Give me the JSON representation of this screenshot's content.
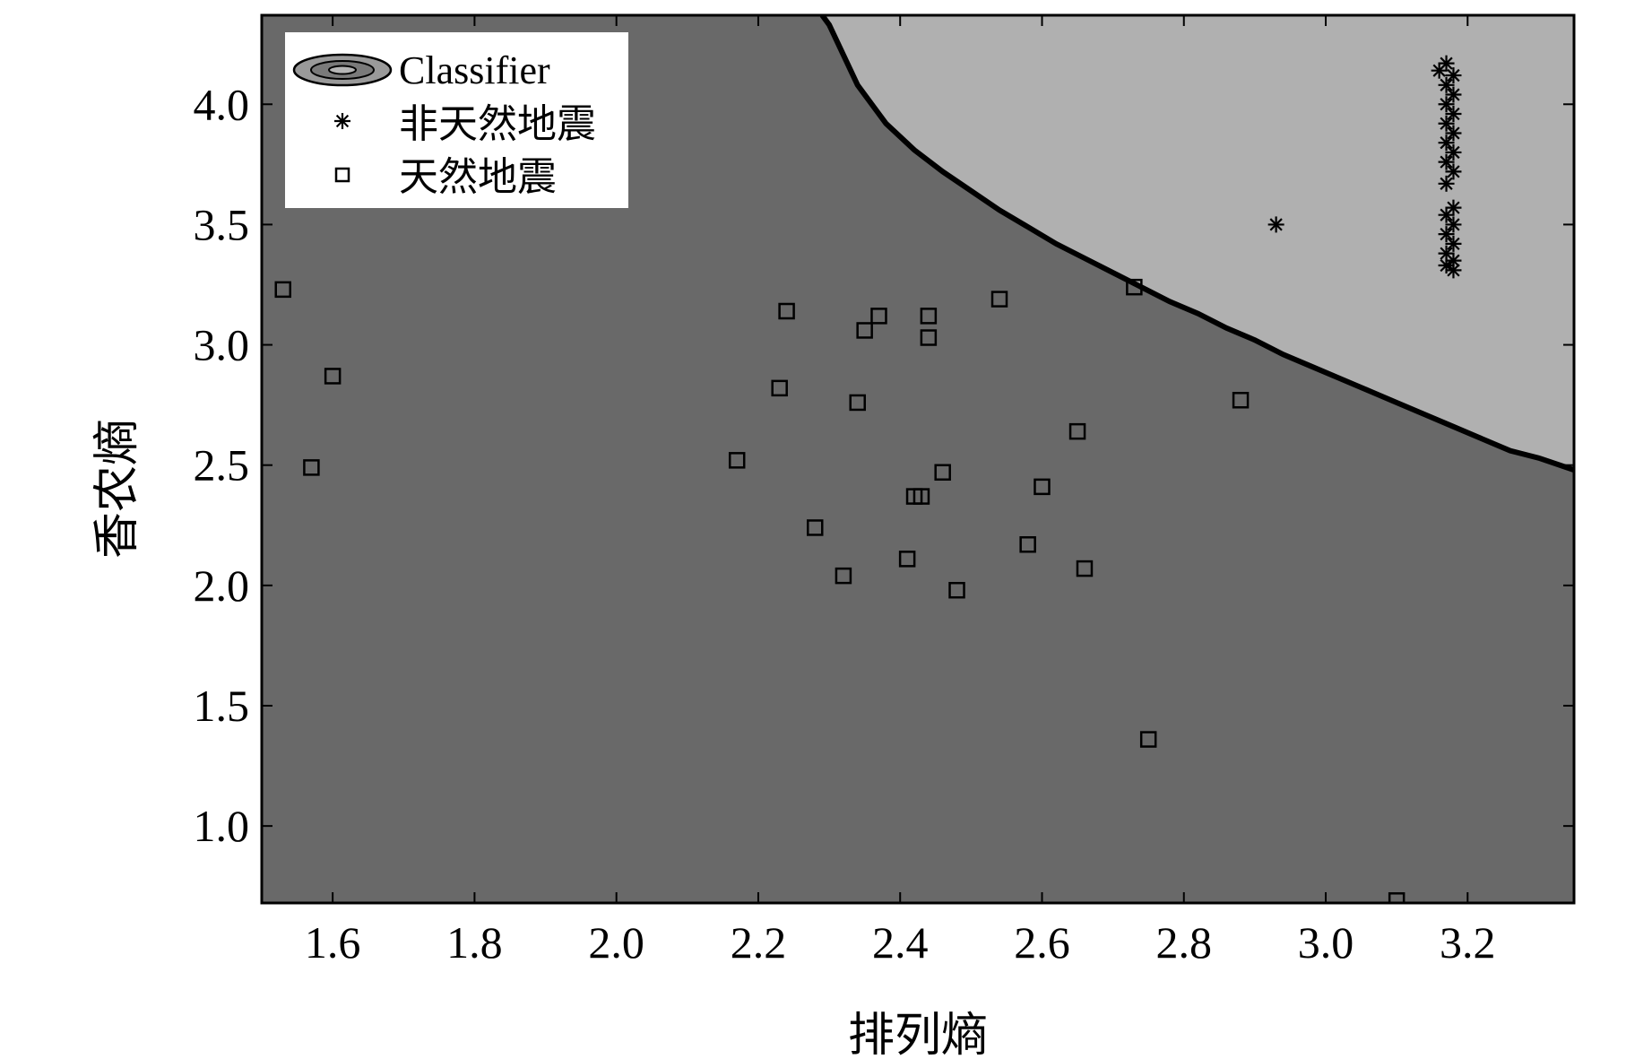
{
  "chart_data": {
    "type": "scatter",
    "title": "",
    "xlabel": "排列熵",
    "ylabel": "香农熵",
    "xlim": [
      1.5,
      3.35
    ],
    "ylim": [
      0.68,
      4.37
    ],
    "xticks": [
      "1.6",
      "1.8",
      "2.0",
      "2.2",
      "2.4",
      "2.6",
      "2.8",
      "3.0",
      "3.2"
    ],
    "xtick_values": [
      1.6,
      1.8,
      2.0,
      2.2,
      2.4,
      2.6,
      2.8,
      3.0,
      3.2
    ],
    "yticks": [
      "1.0",
      "1.5",
      "2.0",
      "2.5",
      "3.0",
      "3.5",
      "4.0"
    ],
    "ytick_values": [
      1.0,
      1.5,
      2.0,
      2.5,
      3.0,
      3.5,
      4.0
    ],
    "grid": false,
    "legend_position": "top-left",
    "legend": [
      {
        "label": "Classifier",
        "marker": "contour"
      },
      {
        "label": "非天然地震",
        "marker": "star"
      },
      {
        "label": "天然地震",
        "marker": "square"
      }
    ],
    "colors": {
      "region_natural": "#696969",
      "region_non_natural": "#b0b0b0",
      "boundary": "#000000",
      "marker": "#000000"
    },
    "decision_boundary": {
      "x": [
        2.29,
        2.3,
        2.34,
        2.38,
        2.42,
        2.46,
        2.5,
        2.54,
        2.58,
        2.62,
        2.66,
        2.7,
        2.74,
        2.78,
        2.82,
        2.86,
        2.9,
        2.94,
        2.98,
        3.02,
        3.06,
        3.1,
        3.14,
        3.18,
        3.22,
        3.26,
        3.3,
        3.35
      ],
      "y": [
        4.37,
        4.33,
        4.08,
        3.92,
        3.81,
        3.72,
        3.64,
        3.56,
        3.49,
        3.42,
        3.36,
        3.3,
        3.24,
        3.18,
        3.13,
        3.07,
        3.02,
        2.96,
        2.91,
        2.86,
        2.81,
        2.76,
        2.71,
        2.66,
        2.61,
        2.56,
        2.53,
        2.48
      ]
    },
    "series": [
      {
        "name": "非天然地震",
        "marker": "star",
        "x": [
          2.93,
          3.16,
          3.17,
          3.18,
          3.17,
          3.18,
          3.17,
          3.18,
          3.17,
          3.18,
          3.17,
          3.18,
          3.17,
          3.18,
          3.17,
          3.18,
          3.17,
          3.18,
          3.17,
          3.18,
          3.17,
          3.18,
          3.17,
          3.18
        ],
        "y": [
          3.5,
          4.14,
          4.17,
          4.12,
          4.08,
          4.04,
          4.0,
          3.96,
          3.92,
          3.88,
          3.84,
          3.8,
          3.76,
          3.72,
          3.67,
          3.57,
          3.54,
          3.5,
          3.46,
          3.42,
          3.38,
          3.35,
          3.33,
          3.31
        ]
      },
      {
        "name": "天然地震",
        "marker": "square",
        "x": [
          1.53,
          1.6,
          1.57,
          2.17,
          2.23,
          2.24,
          2.28,
          2.32,
          2.34,
          2.35,
          2.37,
          2.41,
          2.42,
          2.43,
          2.44,
          2.44,
          2.46,
          2.48,
          2.54,
          2.58,
          2.6,
          2.65,
          2.66,
          2.73,
          2.75,
          2.88,
          3.1
        ],
        "y": [
          3.23,
          2.87,
          2.49,
          2.52,
          2.82,
          3.14,
          2.24,
          2.04,
          2.76,
          3.06,
          3.12,
          2.11,
          2.37,
          2.37,
          3.03,
          3.12,
          2.47,
          1.98,
          3.19,
          2.17,
          2.41,
          2.64,
          2.07,
          3.24,
          1.36,
          2.77,
          0.69
        ]
      }
    ]
  }
}
